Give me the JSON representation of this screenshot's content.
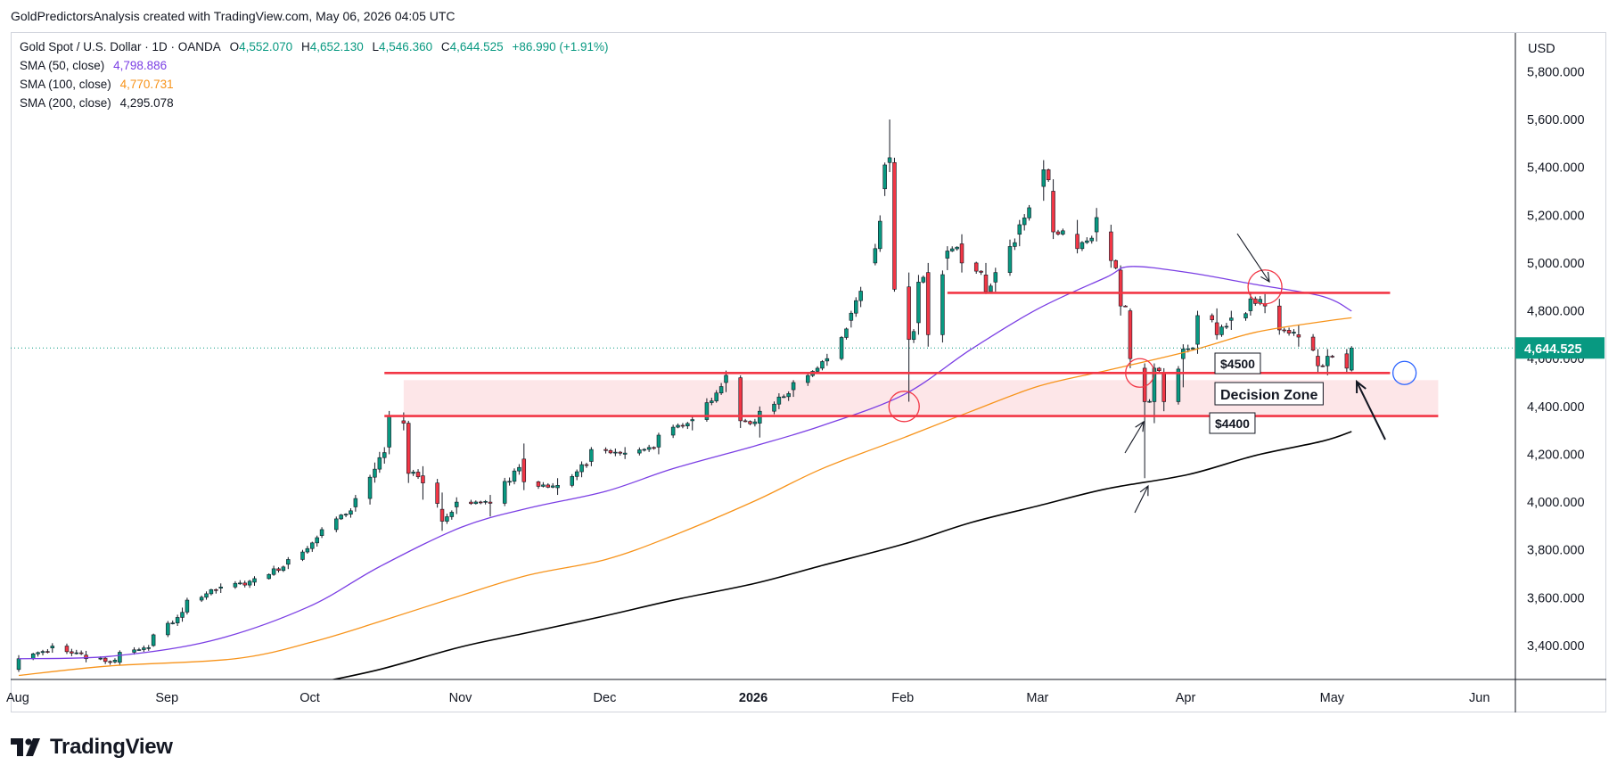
{
  "header": {
    "credit": "GoldPredictorsAnalysis created with TradingView.com, May 06, 2026 04:05 UTC"
  },
  "legend": {
    "symbol": "Gold Spot / U.S. Dollar · 1D · OANDA",
    "o_label": "O",
    "o_value": "4,552.070",
    "h_label": "H",
    "h_value": "4,652.130",
    "l_label": "L",
    "l_value": "4,546.360",
    "c_label": "C",
    "c_value": "4,644.525",
    "change": "+86.990 (+1.91%)",
    "sma50_label": "SMA (50, close)",
    "sma50_value": "4,798.886",
    "sma100_label": "SMA (100, close)",
    "sma100_value": "4,770.731",
    "sma200_label": "SMA (200, close)",
    "sma200_value": "4,295.078"
  },
  "colors": {
    "up": "#089981",
    "down": "#f23645",
    "sma50": "#7b3fe4",
    "sma100": "#f7931a",
    "sma200": "#000000",
    "level": "#f23645",
    "zone": "#fde3e6",
    "price_badge": "#089981"
  },
  "branding": {
    "logo_text": "TradingView",
    "logo_icon": "tradingview-logo-icon"
  },
  "chart_data": {
    "type": "candlestick",
    "currency_label": "USD",
    "y_ticks": [
      "5,800.000",
      "5,600.000",
      "5,400.000",
      "5,200.000",
      "5,000.000",
      "4,800.000",
      "4,600.000",
      "4,400.000",
      "4,200.000",
      "4,000.000",
      "3,800.000",
      "3,600.000",
      "3,400.000"
    ],
    "y_tick_values": [
      5800,
      5600,
      5400,
      5200,
      5000,
      4800,
      4600,
      4400,
      4200,
      4000,
      3800,
      3600,
      3400
    ],
    "ylim": [
      3270,
      5980
    ],
    "x_labels": [
      {
        "label": "Aug",
        "date": "2025-08-01",
        "bold": false
      },
      {
        "label": "Sep",
        "date": "2025-09-01",
        "bold": false
      },
      {
        "label": "Oct",
        "date": "2025-10-01",
        "bold": false
      },
      {
        "label": "Nov",
        "date": "2025-11-01",
        "bold": false
      },
      {
        "label": "Dec",
        "date": "2025-12-01",
        "bold": false
      },
      {
        "label": "2026",
        "date": "2026-01-01",
        "bold": true
      },
      {
        "label": "Feb",
        "date": "2026-02-01",
        "bold": false
      },
      {
        "label": "Mar",
        "date": "2026-03-01",
        "bold": false
      },
      {
        "label": "Apr",
        "date": "2026-04-01",
        "bold": false
      },
      {
        "label": "May",
        "date": "2026-05-01",
        "bold": false
      },
      {
        "label": "Jun",
        "date": "2026-06-01",
        "bold": false
      }
    ],
    "xlim": [
      "2025-08-01",
      "2026-06-01"
    ],
    "last_price": "4,644.525",
    "last_price_value": 4644.525,
    "anchors": [
      [
        "2025-08-01",
        3300,
        3360,
        3290,
        3345
      ],
      [
        "2025-08-08",
        3390,
        3410,
        3370,
        3398
      ],
      [
        "2025-08-15",
        3360,
        3378,
        3330,
        3345
      ],
      [
        "2025-08-22",
        3330,
        3380,
        3320,
        3372
      ],
      [
        "2025-08-29",
        3400,
        3450,
        3395,
        3445
      ],
      [
        "2025-09-05",
        3540,
        3600,
        3530,
        3590
      ],
      [
        "2025-09-12",
        3640,
        3660,
        3620,
        3645
      ],
      [
        "2025-09-19",
        3665,
        3690,
        3650,
        3680
      ],
      [
        "2025-09-26",
        3740,
        3770,
        3720,
        3760
      ],
      [
        "2025-10-03",
        3860,
        3895,
        3850,
        3885
      ],
      [
        "2025-10-10",
        3980,
        4030,
        3960,
        4015
      ],
      [
        "2025-10-17",
        4230,
        4381,
        4200,
        4360
      ],
      [
        "2025-10-20",
        4340,
        4375,
        4300,
        4330
      ],
      [
        "2025-10-21",
        4330,
        4340,
        4080,
        4120
      ],
      [
        "2025-10-24",
        4110,
        4150,
        4010,
        4080
      ],
      [
        "2025-10-28",
        3970,
        4040,
        3880,
        3920
      ],
      [
        "2025-10-31",
        3980,
        4020,
        3950,
        4000
      ],
      [
        "2025-11-07",
        4000,
        4030,
        3940,
        3995
      ],
      [
        "2025-11-14",
        4180,
        4245,
        4050,
        4085
      ],
      [
        "2025-11-21",
        4060,
        4100,
        4030,
        4070
      ],
      [
        "2025-11-28",
        4170,
        4230,
        4150,
        4220
      ],
      [
        "2025-12-05",
        4200,
        4230,
        4180,
        4205
      ],
      [
        "2025-12-12",
        4230,
        4290,
        4200,
        4280
      ],
      [
        "2025-12-19",
        4340,
        4360,
        4300,
        4345
      ],
      [
        "2025-12-26",
        4500,
        4550,
        4460,
        4530
      ],
      [
        "2025-12-29",
        4520,
        4530,
        4310,
        4340
      ],
      [
        "2026-01-02",
        4330,
        4400,
        4270,
        4380
      ],
      [
        "2026-01-09",
        4470,
        4510,
        4440,
        4500
      ],
      [
        "2026-01-16",
        4590,
        4620,
        4570,
        4600
      ],
      [
        "2026-01-21",
        4760,
        4800,
        4730,
        4790
      ],
      [
        "2026-01-26",
        5000,
        5080,
        4990,
        5060
      ],
      [
        "2026-01-28",
        5310,
        5420,
        5280,
        5410
      ],
      [
        "2026-01-29",
        5420,
        5600,
        5380,
        5440
      ],
      [
        "2026-01-30",
        5420,
        5440,
        4880,
        4890
      ],
      [
        "2026-02-02",
        4900,
        4960,
        4420,
        4680
      ],
      [
        "2026-02-04",
        4750,
        4950,
        4700,
        4920
      ],
      [
        "2026-02-06",
        4960,
        5000,
        4650,
        4700
      ],
      [
        "2026-02-10",
        5020,
        5070,
        4970,
        5050
      ],
      [
        "2026-02-13",
        5080,
        5120,
        4960,
        5000
      ],
      [
        "2026-02-18",
        4950,
        5000,
        4870,
        4880
      ],
      [
        "2026-02-20",
        4920,
        4980,
        4880,
        4960
      ],
      [
        "2026-02-25",
        5120,
        5180,
        5070,
        5160
      ],
      [
        "2026-03-02",
        5320,
        5430,
        5260,
        5390
      ],
      [
        "2026-03-04",
        5300,
        5350,
        5100,
        5130
      ],
      [
        "2026-03-09",
        5120,
        5180,
        5040,
        5060
      ],
      [
        "2026-03-13",
        5130,
        5230,
        5090,
        5190
      ],
      [
        "2026-03-16",
        5130,
        5160,
        4980,
        5010
      ],
      [
        "2026-03-18",
        4970,
        4990,
        4780,
        4820
      ],
      [
        "2026-03-20",
        4800,
        4810,
        4560,
        4600
      ],
      [
        "2026-03-23",
        4560,
        4580,
        4100,
        4420
      ],
      [
        "2026-03-25",
        4420,
        4580,
        4330,
        4560
      ],
      [
        "2026-03-27",
        4540,
        4560,
        4380,
        4420
      ],
      [
        "2026-03-31",
        4600,
        4660,
        4480,
        4640
      ],
      [
        "2026-04-03",
        4660,
        4800,
        4620,
        4780
      ],
      [
        "2026-04-07",
        4750,
        4810,
        4680,
        4700
      ],
      [
        "2026-04-10",
        4760,
        4800,
        4720,
        4770
      ],
      [
        "2026-04-14",
        4800,
        4880,
        4780,
        4850
      ],
      [
        "2026-04-17",
        4830,
        4870,
        4790,
        4820
      ],
      [
        "2026-04-20",
        4820,
        4850,
        4700,
        4720
      ],
      [
        "2026-04-24",
        4700,
        4740,
        4650,
        4690
      ],
      [
        "2026-04-28",
        4610,
        4640,
        4540,
        4570
      ],
      [
        "2026-04-30",
        4570,
        4640,
        4530,
        4610
      ],
      [
        "2026-05-04",
        4620,
        4640,
        4540,
        4560
      ],
      [
        "2026-05-05",
        4552.07,
        4652.13,
        4546.36,
        4644.525
      ]
    ],
    "sma50": [
      [
        "2025-08-01",
        3345
      ],
      [
        "2025-08-20",
        3355
      ],
      [
        "2025-09-10",
        3420
      ],
      [
        "2025-09-30",
        3560
      ],
      [
        "2025-10-15",
        3730
      ],
      [
        "2025-11-01",
        3895
      ],
      [
        "2025-11-15",
        3975
      ],
      [
        "2025-12-01",
        4045
      ],
      [
        "2025-12-15",
        4140
      ],
      [
        "2026-01-01",
        4235
      ],
      [
        "2026-01-15",
        4320
      ],
      [
        "2026-02-01",
        4450
      ],
      [
        "2026-02-15",
        4640
      ],
      [
        "2026-03-01",
        4810
      ],
      [
        "2026-03-15",
        4940
      ],
      [
        "2026-03-20",
        4985
      ],
      [
        "2026-04-01",
        4960
      ],
      [
        "2026-04-15",
        4910
      ],
      [
        "2026-04-29",
        4860
      ],
      [
        "2026-05-05",
        4798.886
      ]
    ],
    "sma100": [
      [
        "2025-08-01",
        3275
      ],
      [
        "2025-08-20",
        3315
      ],
      [
        "2025-09-15",
        3345
      ],
      [
        "2025-10-01",
        3415
      ],
      [
        "2025-10-15",
        3500
      ],
      [
        "2025-11-01",
        3610
      ],
      [
        "2025-11-15",
        3695
      ],
      [
        "2025-12-01",
        3760
      ],
      [
        "2025-12-15",
        3860
      ],
      [
        "2026-01-01",
        4005
      ],
      [
        "2026-01-15",
        4140
      ],
      [
        "2026-02-01",
        4270
      ],
      [
        "2026-02-15",
        4380
      ],
      [
        "2026-03-01",
        4485
      ],
      [
        "2026-03-15",
        4550
      ],
      [
        "2026-04-01",
        4630
      ],
      [
        "2026-04-15",
        4710
      ],
      [
        "2026-04-29",
        4755
      ],
      [
        "2026-05-05",
        4770.731
      ]
    ],
    "sma200": [
      [
        "2025-10-01",
        3240
      ],
      [
        "2025-10-15",
        3300
      ],
      [
        "2025-11-01",
        3395
      ],
      [
        "2025-11-15",
        3455
      ],
      [
        "2025-12-01",
        3525
      ],
      [
        "2025-12-15",
        3590
      ],
      [
        "2026-01-01",
        3660
      ],
      [
        "2026-01-15",
        3735
      ],
      [
        "2026-02-01",
        3825
      ],
      [
        "2026-02-15",
        3915
      ],
      [
        "2026-03-01",
        3985
      ],
      [
        "2026-03-15",
        4055
      ],
      [
        "2026-04-01",
        4115
      ],
      [
        "2026-04-15",
        4195
      ],
      [
        "2026-04-29",
        4255
      ],
      [
        "2026-05-05",
        4295.078
      ]
    ],
    "levels": [
      {
        "value": 4875,
        "start": "2026-02-10",
        "end": "2026-05-13"
      },
      {
        "value": 4540,
        "start": "2025-10-16",
        "end": "2026-05-13"
      },
      {
        "value": 4360,
        "start": "2025-10-16",
        "end": "2026-05-23"
      }
    ],
    "zone": {
      "low": 4360,
      "high": 4510,
      "start": "2025-10-20",
      "end": "2026-05-23"
    },
    "annotations": {
      "label_4500": "$4500",
      "label_4400": "$4400",
      "decision_zone": "Decision Zone"
    }
  }
}
